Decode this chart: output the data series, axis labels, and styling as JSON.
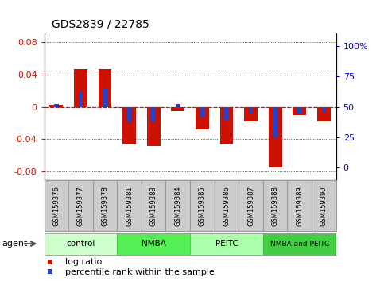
{
  "title": "GDS2839 / 22785",
  "samples": [
    "GSM159376",
    "GSM159377",
    "GSM159378",
    "GSM159381",
    "GSM159383",
    "GSM159384",
    "GSM159385",
    "GSM159386",
    "GSM159387",
    "GSM159388",
    "GSM159389",
    "GSM159390"
  ],
  "log_ratio": [
    0.002,
    0.046,
    0.046,
    -0.046,
    -0.048,
    -0.005,
    -0.028,
    -0.046,
    -0.018,
    -0.075,
    -0.01,
    -0.018
  ],
  "pct_rank_val": [
    52,
    62,
    64,
    38,
    39,
    52,
    42,
    40,
    44,
    26,
    44,
    46
  ],
  "groups": [
    {
      "label": "control",
      "start": 0,
      "end": 3,
      "color": "#ccffcc"
    },
    {
      "label": "NMBA",
      "start": 3,
      "end": 6,
      "color": "#55ee55"
    },
    {
      "label": "PEITC",
      "start": 6,
      "end": 9,
      "color": "#aaffaa"
    },
    {
      "label": "NMBA and PEITC",
      "start": 9,
      "end": 12,
      "color": "#44cc44"
    }
  ],
  "ylim_left": [
    -0.09,
    0.09
  ],
  "ylim_right": [
    -10,
    110
  ],
  "yticks_left": [
    -0.08,
    -0.04,
    0.0,
    0.04,
    0.08
  ],
  "yticks_right": [
    0,
    25,
    50,
    75,
    100
  ],
  "bar_width": 0.55,
  "pct_bar_width": 0.18,
  "log_color": "#cc1100",
  "pct_color": "#2244cc",
  "hline_color": "#cc1100",
  "tick_color_left": "#cc1100",
  "tick_color_right": "#0000cc",
  "dotline_color": "#333333",
  "sample_box_color": "#cccccc",
  "sample_box_edge": "#999999"
}
